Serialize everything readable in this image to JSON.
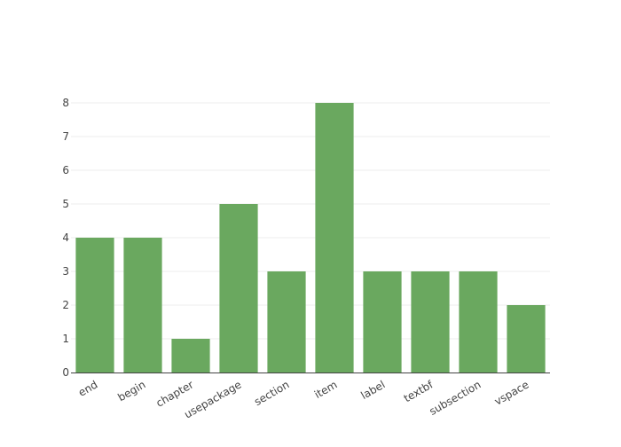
{
  "chart_data": {
    "type": "bar",
    "title": "",
    "xlabel": "",
    "ylabel": "",
    "categories": [
      "end",
      "begin",
      "chapter",
      "usepackage",
      "section",
      "item",
      "label",
      "textbf",
      "subsection",
      "vspace"
    ],
    "values": [
      4,
      4,
      1,
      5,
      3,
      8,
      3,
      3,
      3,
      2
    ],
    "ylim": [
      0,
      8
    ],
    "yticks": [
      0,
      1,
      2,
      3,
      4,
      5,
      6,
      7,
      8
    ],
    "grid": true,
    "legend": "none",
    "x_tick_rotation_deg": -30
  },
  "colors": {
    "bar": "#6aa85f",
    "grid": "#eeeeee",
    "axis": "#444444",
    "text": "#444444"
  }
}
